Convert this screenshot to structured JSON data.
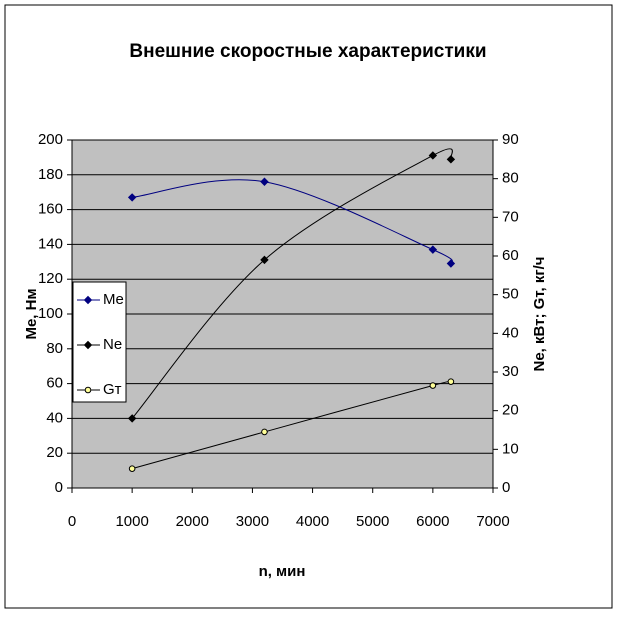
{
  "chart_data": {
    "type": "line",
    "title": "Внешние скоростные характеристики",
    "x_label": "n, мин",
    "y_label": "Ме, Нм",
    "y2_label": "Nе, кВт; Gт, кг/ч",
    "x": [
      1000,
      3200,
      6000,
      6300
    ],
    "xlim": [
      0,
      7000
    ],
    "xticks": [
      0,
      1000,
      2000,
      3000,
      4000,
      5000,
      6000,
      7000
    ],
    "ylim": [
      0,
      200
    ],
    "yticks": [
      0,
      20,
      40,
      60,
      80,
      100,
      120,
      140,
      160,
      180,
      200
    ],
    "y2lim": [
      0,
      90
    ],
    "y2ticks": [
      0,
      10,
      20,
      30,
      40,
      50,
      60,
      70,
      80,
      90
    ],
    "grid": true,
    "smooth": true,
    "legend": "left",
    "series": [
      {
        "name": "Me",
        "color": "#000080",
        "marker_fill": "#000080",
        "axis": "y",
        "values": [
          167,
          176,
          137,
          129
        ]
      },
      {
        "name": "Ne",
        "color": "#000000",
        "marker_fill": "#000000",
        "axis": "y2",
        "values": [
          18,
          59,
          86,
          85
        ]
      },
      {
        "name": "Gт",
        "color": "#000000",
        "marker_fill": "#ffff99",
        "axis": "y2",
        "values": [
          5,
          14.5,
          26.5,
          27.5
        ]
      }
    ]
  }
}
